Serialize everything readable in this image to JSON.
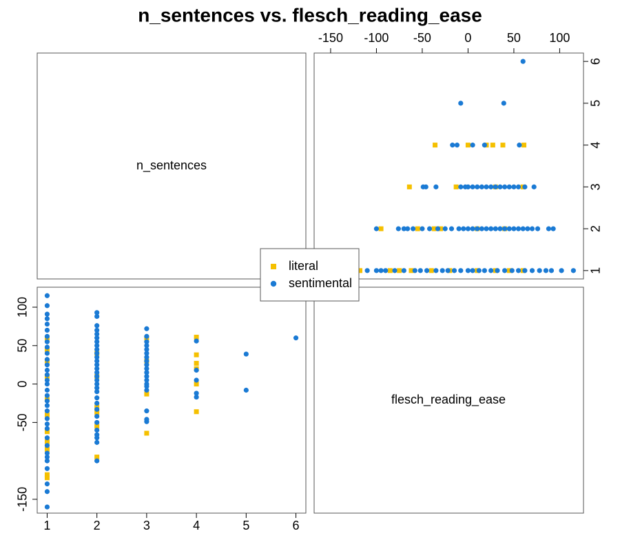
{
  "chart_data": {
    "type": "pairs",
    "title": "n_sentences vs. flesch_reading_ease",
    "variables": [
      "n_sentences",
      "flesch_reading_ease"
    ],
    "n_sentences_lim": [
      0.8,
      6.2
    ],
    "n_sentences_ticks": [
      1,
      2,
      3,
      4,
      5,
      6
    ],
    "flesch_lim": [
      -168,
      126
    ],
    "flesch_ticks_top": [
      -150,
      -100,
      -50,
      0,
      50,
      100
    ],
    "flesch_ticks_left": [
      -150,
      -50,
      0,
      50,
      100
    ],
    "series": [
      {
        "name": "literal",
        "color": "#f5c000",
        "marker": "square",
        "n_sentences": [
          4,
          4,
          4,
          4,
          4,
          4,
          3,
          3,
          3,
          3,
          2,
          2,
          2,
          2,
          2,
          2,
          1,
          1,
          1,
          1,
          1,
          1,
          1,
          1,
          1,
          1,
          1
        ],
        "flesch_reading_ease": [
          -36,
          0,
          20,
          27,
          38,
          61,
          -64,
          -13,
          30,
          60,
          -95,
          -55,
          -37,
          -30,
          10,
          40,
          -122,
          -118,
          -85,
          -75,
          -62,
          -40,
          -20,
          10,
          30,
          45,
          60
        ]
      },
      {
        "name": "sentimental",
        "color": "#1a7ad4",
        "marker": "circle",
        "n_sentences": [
          6,
          5,
          5,
          4,
          4,
          4,
          4,
          4,
          3,
          3,
          3,
          3,
          3,
          3,
          3,
          3,
          3,
          3,
          3,
          3,
          3,
          3,
          3,
          3,
          3,
          3,
          3,
          2,
          2,
          2,
          2,
          2,
          2,
          2,
          2,
          2,
          2,
          2,
          2,
          2,
          2,
          2,
          2,
          2,
          2,
          2,
          2,
          2,
          2,
          2,
          2,
          2,
          2,
          2,
          2,
          2,
          2,
          1,
          1,
          1,
          1,
          1,
          1,
          1,
          1,
          1,
          1,
          1,
          1,
          1,
          1,
          1,
          1,
          1,
          1,
          1,
          1,
          1,
          1,
          1,
          1,
          1,
          1,
          1,
          1,
          1,
          1,
          1,
          1,
          1
        ],
        "flesch_reading_ease": [
          60,
          -8,
          39,
          -17,
          -12,
          5,
          18,
          56,
          -49,
          -46,
          -35,
          -8,
          -3,
          0,
          5,
          10,
          15,
          20,
          25,
          30,
          35,
          40,
          45,
          50,
          55,
          62,
          72,
          -100,
          -76,
          -70,
          -66,
          -60,
          -50,
          -42,
          -33,
          -25,
          -18,
          -10,
          -5,
          0,
          5,
          10,
          15,
          20,
          25,
          30,
          35,
          40,
          45,
          50,
          55,
          60,
          65,
          70,
          76,
          88,
          93,
          -160,
          -140,
          -130,
          -110,
          -100,
          -95,
          -90,
          -80,
          -70,
          -58,
          -52,
          -45,
          -35,
          -28,
          -22,
          -15,
          -8,
          0,
          5,
          12,
          18,
          25,
          32,
          40,
          48,
          55,
          62,
          70,
          78,
          85,
          91,
          102,
          115
        ]
      }
    ],
    "legend": "center"
  }
}
